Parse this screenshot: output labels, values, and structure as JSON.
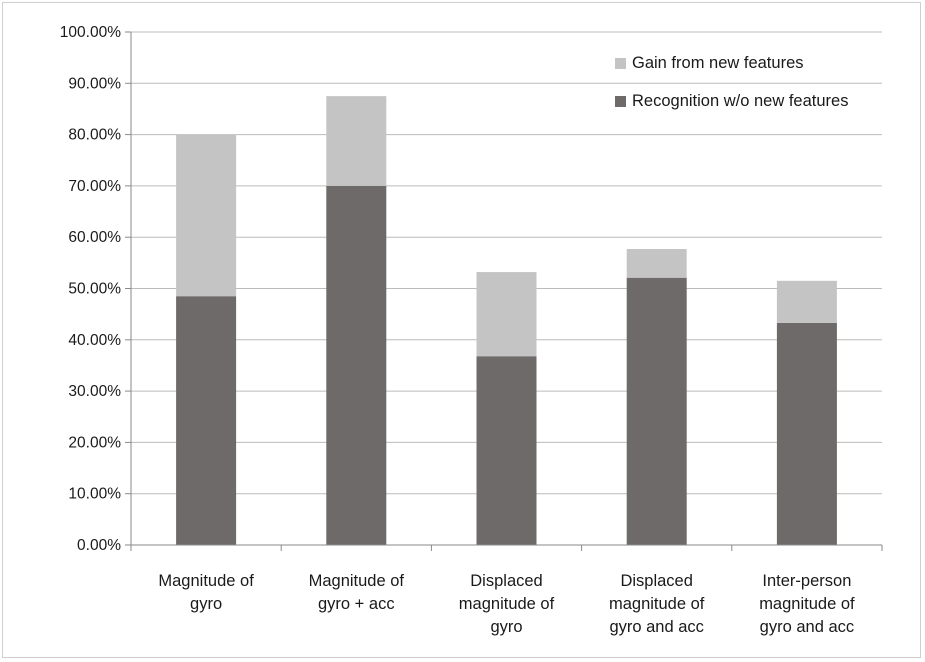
{
  "chart_data": {
    "type": "bar",
    "stacked": true,
    "categories": [
      [
        "Magnitude of",
        "gyro"
      ],
      [
        "Magnitude of",
        "gyro + acc"
      ],
      [
        "Displaced",
        "magnitude of",
        "gyro"
      ],
      [
        "Displaced",
        "magnitude of",
        "gyro and acc"
      ],
      [
        "Inter-person",
        "magnitude of",
        "gyro and acc"
      ]
    ],
    "series": [
      {
        "name": "Recognition w/o new features",
        "color": "#6d6a69",
        "values": [
          48.5,
          70.0,
          36.8,
          52.1,
          43.3
        ]
      },
      {
        "name": "Gain from new features",
        "color": "#c4c4c4",
        "values": [
          31.5,
          17.5,
          16.4,
          5.6,
          8.2
        ]
      }
    ],
    "legend_order": [
      1,
      0
    ],
    "legend_position": "top-right",
    "ylim": [
      0,
      100
    ],
    "y_ticks": [
      "0.00%",
      "10.00%",
      "20.00%",
      "30.00%",
      "40.00%",
      "50.00%",
      "60.00%",
      "70.00%",
      "80.00%",
      "90.00%",
      "100.00%"
    ],
    "grid": true,
    "title": "",
    "xlabel": "",
    "ylabel": ""
  }
}
